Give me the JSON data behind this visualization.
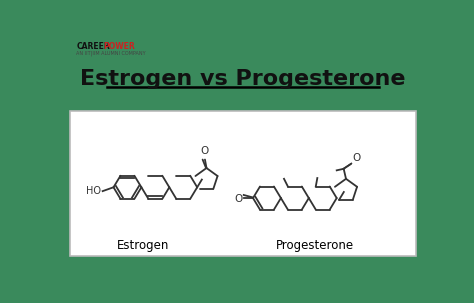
{
  "title": "Estrogen vs Progesterone",
  "background_color": "#3a8a5c",
  "panel_color": "#ffffff",
  "text_color": "#111111",
  "title_fontsize": 16,
  "estrogen_label": "Estrogen",
  "progesterone_label": "Progesterone",
  "logo_text1": "CAREER",
  "logo_text2": "POWER",
  "logo_sub": "AN IIT|IIM ALUMNI COMPANY",
  "line_color": "#333333",
  "line_width": 1.3
}
